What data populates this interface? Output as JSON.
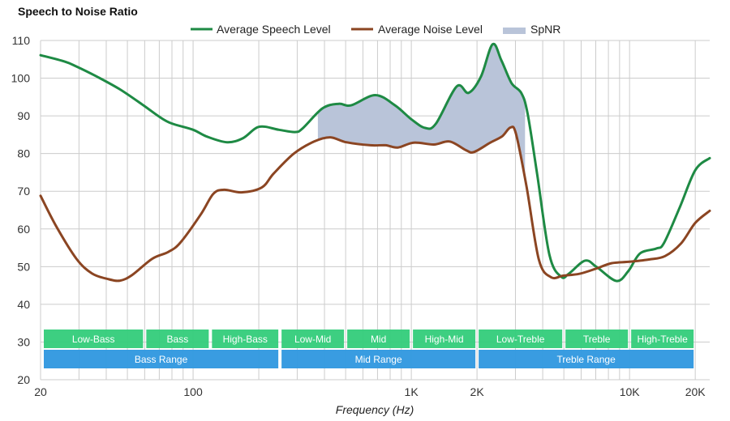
{
  "chart_data": {
    "type": "line",
    "title": "Speech to Noise Ratio",
    "xlabel": "Frequency (Hz)",
    "ylabel": "",
    "xscale": "log",
    "xlim": [
      20,
      23300
    ],
    "ylim": [
      20,
      110
    ],
    "grid": true,
    "legend_position": "top",
    "y_ticks": [
      20,
      30,
      40,
      50,
      60,
      70,
      80,
      90,
      100,
      110
    ],
    "x_ticks": [
      {
        "value": 20,
        "label": "20"
      },
      {
        "value": 100,
        "label": "100"
      },
      {
        "value": 1000,
        "label": "1K"
      },
      {
        "value": 2000,
        "label": "2K"
      },
      {
        "value": 10000,
        "label": "10K"
      },
      {
        "value": 20000,
        "label": "20K"
      }
    ],
    "x_minor_grid": [
      30,
      40,
      50,
      60,
      70,
      80,
      90,
      200,
      300,
      400,
      500,
      600,
      700,
      800,
      900,
      3000,
      4000,
      5000,
      6000,
      7000,
      8000,
      9000
    ],
    "series": [
      {
        "name": "Average Speech Level",
        "color": "#1e8a44",
        "points": [
          [
            20,
            106.1
          ],
          [
            25.8,
            104.4
          ],
          [
            29.2,
            103.1
          ],
          [
            36,
            100.5
          ],
          [
            46.3,
            97.0
          ],
          [
            59.5,
            92.7
          ],
          [
            70.3,
            89.7
          ],
          [
            79.6,
            88.0
          ],
          [
            100,
            86.3
          ],
          [
            115.7,
            84.5
          ],
          [
            143.2,
            83.0
          ],
          [
            169.5,
            84.1
          ],
          [
            200.6,
            87.1
          ],
          [
            247.6,
            86.3
          ],
          [
            293,
            85.7
          ],
          [
            318,
            86.7
          ],
          [
            392,
            92.0
          ],
          [
            465,
            93.2
          ],
          [
            530,
            92.8
          ],
          [
            683,
            95.5
          ],
          [
            842,
            92.8
          ],
          [
            1000,
            89.1
          ],
          [
            1157,
            86.8
          ],
          [
            1295,
            87.9
          ],
          [
            1613,
            97.8
          ],
          [
            1829,
            96.1
          ],
          [
            2084,
            100.4
          ],
          [
            2358,
            109.0
          ],
          [
            2588,
            104.7
          ],
          [
            2878,
            98.7
          ],
          [
            3188,
            96.1
          ],
          [
            3409,
            90.7
          ],
          [
            3771,
            74.6
          ],
          [
            4295,
            53.1
          ],
          [
            4865,
            47.3
          ],
          [
            5289,
            48.2
          ],
          [
            6255,
            51.6
          ],
          [
            7070,
            49.9
          ],
          [
            8704,
            46.2
          ],
          [
            9863,
            48.8
          ],
          [
            11170,
            53.5
          ],
          [
            13250,
            54.8
          ],
          [
            14390,
            56.3
          ],
          [
            17030,
            65.9
          ],
          [
            20000,
            75.6
          ],
          [
            23300,
            78.8
          ]
        ]
      },
      {
        "name": "Average Noise Level",
        "color": "#8b4522",
        "points": [
          [
            20,
            68.8
          ],
          [
            23.6,
            60.7
          ],
          [
            29.2,
            52.1
          ],
          [
            34.4,
            48.2
          ],
          [
            40.8,
            46.7
          ],
          [
            46.3,
            46.3
          ],
          [
            52.6,
            47.8
          ],
          [
            65,
            52.1
          ],
          [
            77,
            53.9
          ],
          [
            87.5,
            56.4
          ],
          [
            108.6,
            63.9
          ],
          [
            123.7,
            69.3
          ],
          [
            138.6,
            70.4
          ],
          [
            166.6,
            69.7
          ],
          [
            206.4,
            71.0
          ],
          [
            234.1,
            74.7
          ],
          [
            289.7,
            80.0
          ],
          [
            358.7,
            83.2
          ],
          [
            424.9,
            84.3
          ],
          [
            503.8,
            83.0
          ],
          [
            648.8,
            82.2
          ],
          [
            762.4,
            82.2
          ],
          [
            866.6,
            81.6
          ],
          [
            1026,
            82.9
          ],
          [
            1268,
            82.4
          ],
          [
            1500,
            83.2
          ],
          [
            1779,
            80.9
          ],
          [
            1935,
            80.4
          ],
          [
            2299,
            82.9
          ],
          [
            2609,
            84.6
          ],
          [
            2845,
            86.9
          ],
          [
            3019,
            85.2
          ],
          [
            3374,
            71.2
          ],
          [
            3840,
            51.9
          ],
          [
            4364,
            47.2
          ],
          [
            4962,
            47.6
          ],
          [
            5887,
            48.1
          ],
          [
            6972,
            49.4
          ],
          [
            8263,
            50.9
          ],
          [
            10000,
            51.3
          ],
          [
            12270,
            51.9
          ],
          [
            14540,
            52.8
          ],
          [
            17240,
            56.2
          ],
          [
            20000,
            61.6
          ],
          [
            23300,
            64.8
          ]
        ]
      }
    ],
    "fill": {
      "name": "SpNR",
      "color": "#b9c4d9",
      "from": 373,
      "to": 3320
    },
    "bands": {
      "color": "#33cc7a",
      "items": [
        {
          "label": "Low-Bass",
          "from": 20,
          "to": 60
        },
        {
          "label": "Bass",
          "from": 60,
          "to": 120
        },
        {
          "label": "High-Bass",
          "from": 120,
          "to": 250
        },
        {
          "label": "Low-Mid",
          "from": 250,
          "to": 500
        },
        {
          "label": "Mid",
          "from": 500,
          "to": 1000
        },
        {
          "label": "High-Mid",
          "from": 1000,
          "to": 2000
        },
        {
          "label": "Low-Treble",
          "from": 2000,
          "to": 5000
        },
        {
          "label": "Treble",
          "from": 5000,
          "to": 10000
        },
        {
          "label": "High-Treble",
          "from": 10000,
          "to": 20000
        }
      ]
    },
    "ranges": {
      "color": "#3399e0",
      "items": [
        {
          "label": "Bass Range",
          "from": 20,
          "to": 250
        },
        {
          "label": "Mid Range",
          "from": 250,
          "to": 2000
        },
        {
          "label": "Treble Range",
          "from": 2000,
          "to": 20000
        }
      ]
    },
    "legend": [
      {
        "label": "Average Speech Level",
        "kind": "line",
        "color": "#1e8a44"
      },
      {
        "label": "Average Noise Level",
        "kind": "line",
        "color": "#8b4522"
      },
      {
        "label": "SpNR",
        "kind": "area",
        "color": "#b9c4d9"
      }
    ]
  }
}
